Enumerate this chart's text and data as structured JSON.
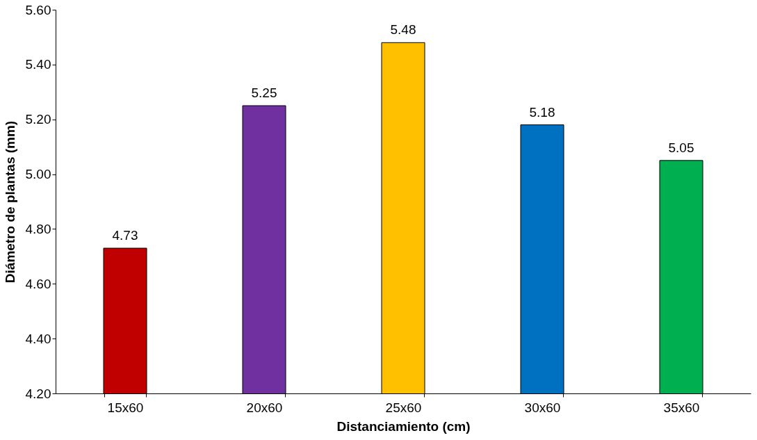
{
  "chart_data": {
    "type": "bar",
    "xlabel": "Distanciamiento (cm)",
    "ylabel": "Diámetro de plantas (mm)",
    "categories": [
      "15x60",
      "20x60",
      "25x60",
      "30x60",
      "35x60"
    ],
    "values": [
      4.73,
      5.25,
      5.48,
      5.18,
      5.05
    ],
    "colors": [
      "#c00000",
      "#7030a0",
      "#ffc000",
      "#0070c0",
      "#00b050"
    ],
    "ylim": [
      4.2,
      5.6
    ],
    "yticks": [
      {
        "value": 4.2,
        "label": "4.20"
      },
      {
        "value": 4.4,
        "label": "4.40"
      },
      {
        "value": 4.6,
        "label": "4.60"
      },
      {
        "value": 4.8,
        "label": "4.80"
      },
      {
        "value": 5.0,
        "label": "5.00"
      },
      {
        "value": 5.2,
        "label": "5.20"
      },
      {
        "value": 5.4,
        "label": "5.40"
      },
      {
        "value": 5.6,
        "label": "5.60"
      }
    ],
    "data_labels": true,
    "grid": false
  }
}
